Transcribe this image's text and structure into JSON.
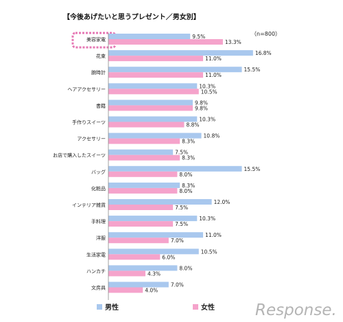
{
  "chart_data": {
    "type": "bar",
    "orientation": "horizontal",
    "title": "【今後あげたいと思うプレゼント／男女別】",
    "note": "（n=800）",
    "categories": [
      "美容家電",
      "花束",
      "腕時計",
      "ヘアアクセサリー",
      "書籍",
      "手作りスイーツ",
      "アクセサリー",
      "お店で購入したスイーツ",
      "バッグ",
      "化粧品",
      "インテリア雑貨",
      "手料理",
      "洋服",
      "生活家電",
      "ハンカチ",
      "文房具"
    ],
    "series": [
      {
        "name": "男性",
        "color": "#a9c8ee",
        "values": [
          9.5,
          16.8,
          15.5,
          10.3,
          9.8,
          10.3,
          10.8,
          7.5,
          15.5,
          8.3,
          12.0,
          10.3,
          11.0,
          10.5,
          8.0,
          7.0
        ],
        "labels": [
          "9.5%",
          "16.8%",
          "15.5%",
          "10.3%",
          "9.8%",
          "10.3%",
          "10.8%",
          "7.5%",
          "15.5%",
          "8.3%",
          "12.0%",
          "10.3%",
          "11.0%",
          "10.5%",
          "8.0%",
          "7.0%"
        ]
      },
      {
        "name": "女性",
        "color": "#f5a3cb",
        "values": [
          13.3,
          11.0,
          11.0,
          10.5,
          9.8,
          8.8,
          8.3,
          8.3,
          8.0,
          8.0,
          7.5,
          7.5,
          7.0,
          6.0,
          4.3,
          4.0
        ],
        "labels": [
          "13.3%",
          "11.0%",
          "11.0%",
          "10.5%",
          "9.8%",
          "8.8%",
          "8.3%",
          "8.3%",
          "8.0%",
          "8.0%",
          "7.5%",
          "7.5%",
          "7.0%",
          "6.0%",
          "4.3%",
          "4.0%"
        ]
      }
    ],
    "highlight_category": "美容家電",
    "highlight_color": "#e678b4",
    "legend_position": "bottom",
    "grid": false
  },
  "watermark": "Response."
}
